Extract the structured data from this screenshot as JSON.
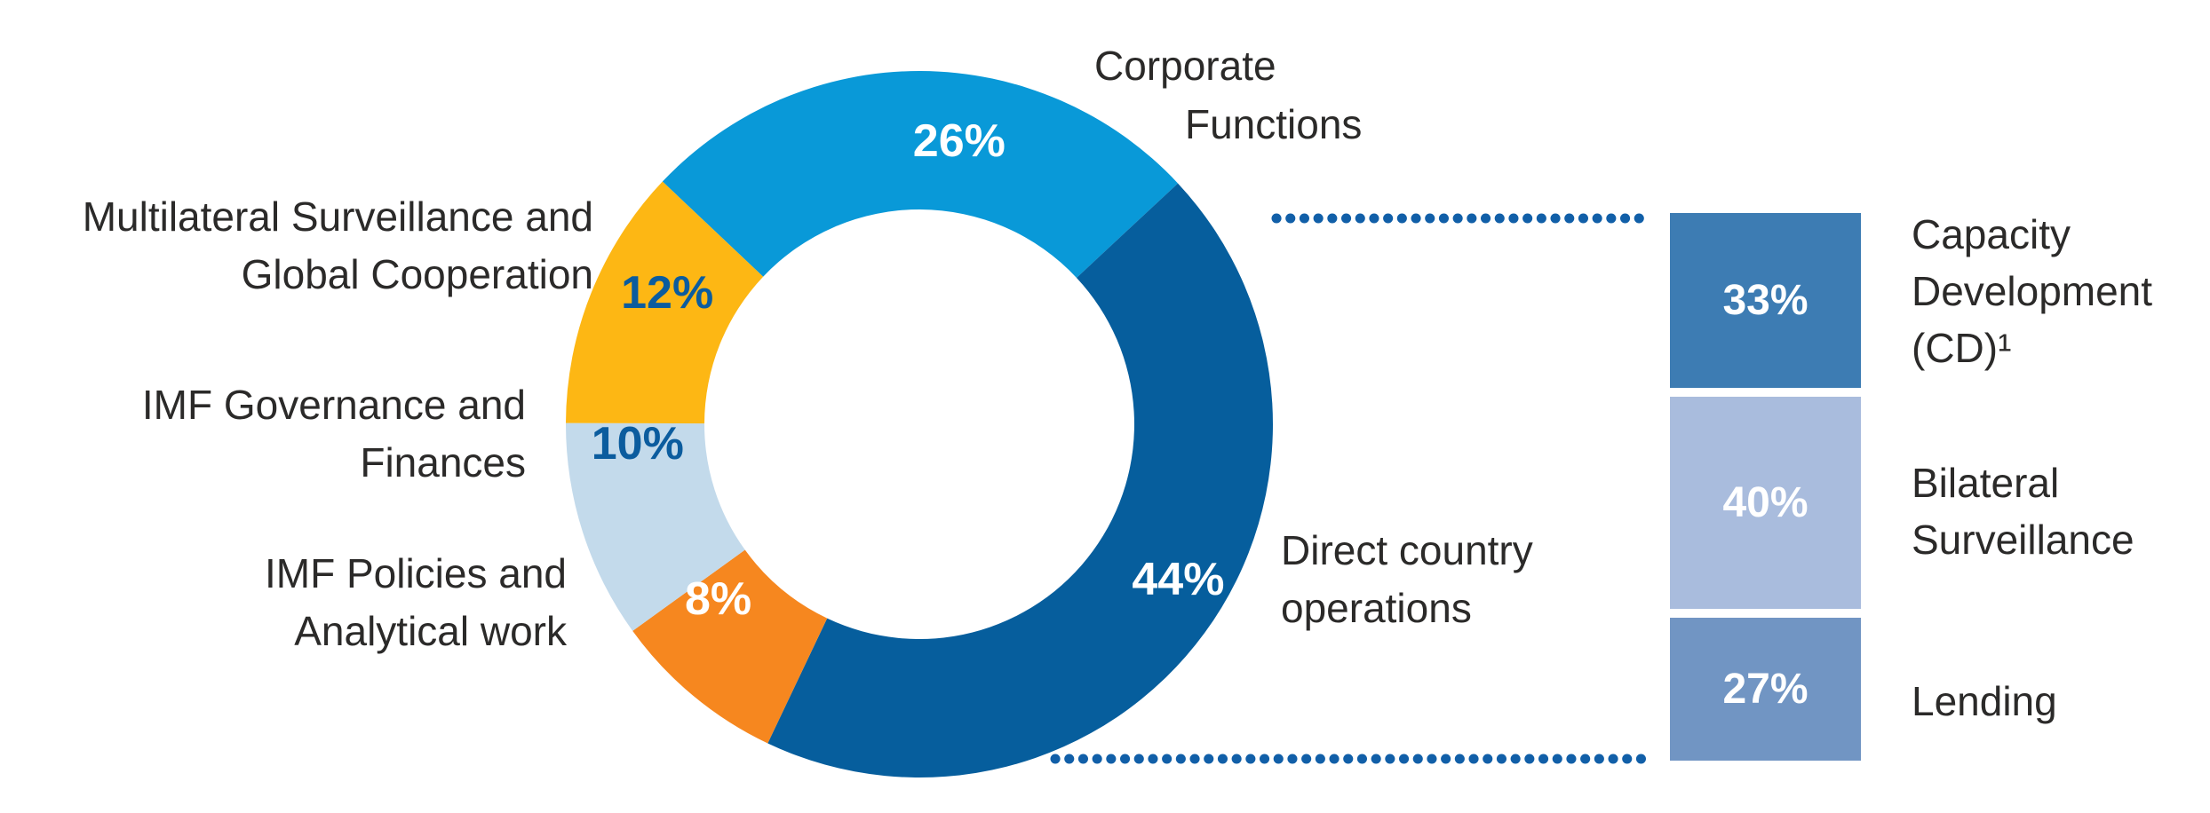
{
  "chart_data": {
    "type": "pie",
    "subtype": "donut-with-breakdown-bar",
    "legend_position": "labels-around-chart",
    "connector_style": "dotted",
    "connector_color": "#115fa8",
    "donut": {
      "start_angle_deg": 136.6,
      "direction": "clockwise",
      "segments": [
        {
          "label": "Corporate Functions",
          "label_lines": [
            "Corporate",
            "Functions"
          ],
          "value": 26,
          "pct_label": "26%",
          "color": "#0999d8",
          "pct_color": "#ffffff",
          "label_angle_deg": 82,
          "label_radius": 322
        },
        {
          "label": "Direct country operations",
          "label_lines": [
            "Direct country",
            "operations"
          ],
          "value": 44,
          "pct_label": "44%",
          "color": "#065e9d",
          "pct_color": "#ffffff",
          "label_angle_deg": -31,
          "label_radius": 340
        },
        {
          "label": "IMF Policies and Analytical work",
          "label_lines": [
            "IMF Policies and",
            "Analytical work"
          ],
          "value": 8,
          "pct_label": "8%",
          "color": "#f6871f",
          "pct_color": "#ffffff",
          "label_angle_deg": 221,
          "label_radius": 300
        },
        {
          "label": "IMF Governance and Finances",
          "label_lines": [
            "IMF Governance and",
            "Finances"
          ],
          "value": 10,
          "pct_label": "10%",
          "color": "#c3daeb",
          "pct_color": "#0b5c9e",
          "label_angle_deg": 184,
          "label_radius": 318
        },
        {
          "label": "Multilateral Surveillance and Global Cooperation",
          "label_lines": [
            "Multilateral Surveillance and",
            "Global Cooperation"
          ],
          "value": 12,
          "pct_label": "12%",
          "color": "#fdb714",
          "pct_color": "#0b5c9e",
          "label_angle_deg": 152.5,
          "label_radius": 320
        }
      ]
    },
    "breakdown_bar": {
      "of_segment": "Direct country operations",
      "blocks": [
        {
          "label": "Capacity Development (CD)¹",
          "label_lines": [
            "Capacity",
            "Development",
            "(CD)¹"
          ],
          "value": 33,
          "pct_label": "33%",
          "color": "#3d7cb3"
        },
        {
          "label": "Bilateral Surveillance",
          "label_lines": [
            "Bilateral",
            "Surveillance"
          ],
          "value": 40,
          "pct_label": "40%",
          "color": "#a9bcdd"
        },
        {
          "label": "Lending",
          "label_lines": [
            "Lending"
          ],
          "value": 27,
          "pct_label": "27%",
          "color": "#7195c3"
        }
      ]
    }
  }
}
